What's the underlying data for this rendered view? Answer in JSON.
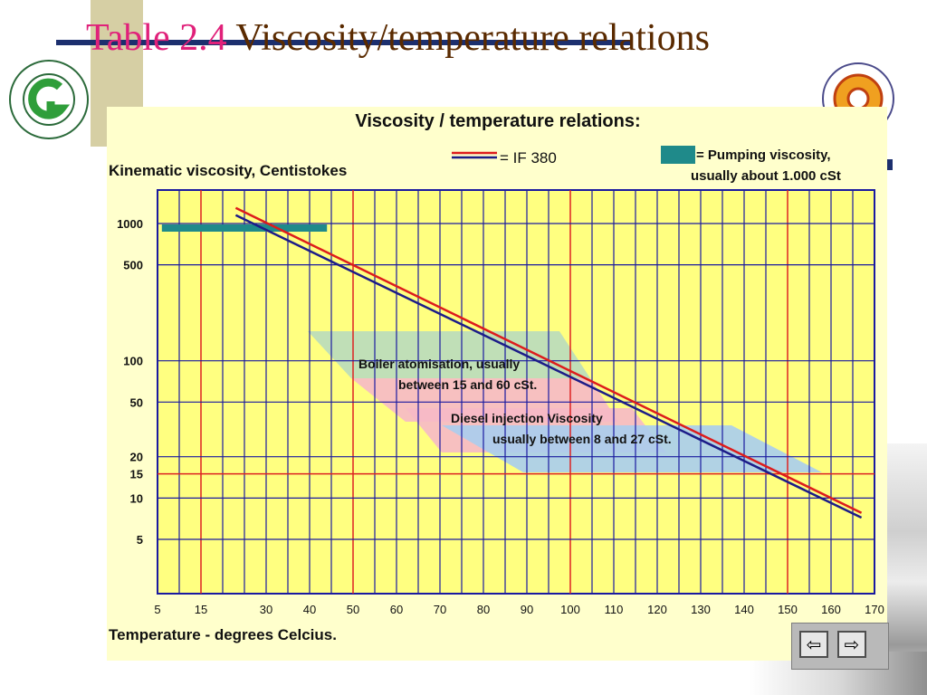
{
  "slide": {
    "title_prefix": "Table 2.4",
    "title_rest": " Viscosity/temperature relations",
    "logo_left_icon": "wuhan-university-of-technology-logo-icon",
    "logo_right_icon": "faculty-emblem-logo-icon",
    "colors": {
      "title_prefix": "#e0217a",
      "title_rest": "#5a2a00",
      "chart_bg": "#ffffcc",
      "grid": "#1a1aa0",
      "highlight_grid": "#dd2222",
      "pumping": "#1f8a8a"
    }
  },
  "nav": {
    "prev_icon": "arrow-left-icon",
    "prev_label": "⇦",
    "next_icon": "arrow-right-icon",
    "next_label": "⇨"
  },
  "chart_data": {
    "type": "line",
    "title": "Viscosity / temperature relations:",
    "ylabel": "Kinematic viscosity, Centistokes",
    "xlabel": "Temperature - degrees Celcius.",
    "y_scale": "log",
    "grid": true,
    "xlim": [
      5,
      170
    ],
    "x_ticks": [
      5,
      15,
      30,
      40,
      50,
      60,
      70,
      80,
      90,
      100,
      110,
      120,
      130,
      140,
      150,
      160,
      170
    ],
    "y_ticks": [
      1000,
      500,
      100,
      50,
      20,
      15,
      10,
      5
    ],
    "highlight_x": [
      15,
      50,
      100,
      150
    ],
    "highlight_y": [
      15
    ],
    "legend": [
      {
        "label": "= IF 380"
      },
      {
        "label_line1": "= Pumping viscosity,",
        "label_line2": "usually about 1.000 cSt"
      }
    ],
    "series": [
      {
        "name": "IF 380",
        "color": "#dd1c1c",
        "x": [
          23,
          167
        ],
        "y": [
          1300,
          7.8
        ]
      },
      {
        "name": "IF 380",
        "color": "#1c1c88",
        "x": [
          23,
          167
        ],
        "y": [
          1150,
          7.2
        ]
      }
    ],
    "pumping_band": {
      "x": [
        6,
        44
      ],
      "y": [
        1000,
        1000
      ]
    },
    "annotations": [
      {
        "line1": "Boiler atomisation, usually",
        "line2": "between 15 and 60 cSt."
      },
      {
        "line1": "Diesel injection Viscosity",
        "line2": "usually between 8 and 27 cSt."
      }
    ]
  }
}
